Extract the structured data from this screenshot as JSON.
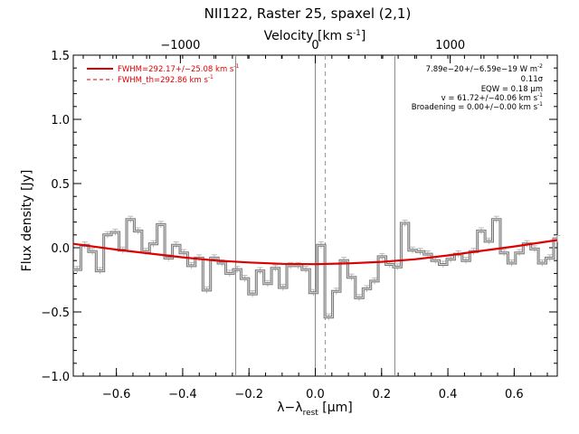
{
  "chart_data": {
    "type": "line",
    "title": "NII122, Raster 25, spaxel (2,1)",
    "xlabel": "λ−λ_rest [μm]",
    "xlabel_main": "λ−λ",
    "xlabel_sub": "rest",
    "xlabel_unit": " [μm]",
    "ylabel": "Flux density [Jy]",
    "top_axis_label": "Velocity [km s⁻¹]",
    "top_axis_label_main": "Velocity [km s",
    "top_axis_label_sup": "-1",
    "top_axis_label_end": "]",
    "xlim": [
      -0.73,
      0.73
    ],
    "ylim": [
      -1.0,
      1.5
    ],
    "x_ticks": [
      -0.6,
      -0.4,
      -0.2,
      0.0,
      0.2,
      0.4,
      0.6
    ],
    "x_tick_labels": [
      "−0.6",
      "−0.4",
      "−0.2",
      "0.0",
      "0.2",
      "0.4",
      "0.6"
    ],
    "y_ticks": [
      -1.0,
      -0.5,
      0.0,
      0.5,
      1.0,
      1.5
    ],
    "y_tick_labels": [
      "−1.0",
      "−0.5",
      "0.0",
      "0.5",
      "1.0",
      "1.5"
    ],
    "top_ticks_kms": [
      -1000,
      0,
      1000
    ],
    "top_tick_labels": [
      "−1000",
      "0",
      "1000"
    ],
    "vertical_lines": [
      {
        "x": -0.24,
        "style": "solid"
      },
      {
        "x": 0.0,
        "style": "solid"
      },
      {
        "x": 0.03,
        "style": "dashed"
      },
      {
        "x": 0.24,
        "style": "solid"
      }
    ],
    "series": [
      {
        "name": "spectrum",
        "style": "step",
        "color": "#777777",
        "x": [
          -0.73,
          -0.707,
          -0.684,
          -0.661,
          -0.638,
          -0.615,
          -0.592,
          -0.569,
          -0.546,
          -0.523,
          -0.5,
          -0.477,
          -0.454,
          -0.431,
          -0.408,
          -0.385,
          -0.362,
          -0.339,
          -0.316,
          -0.293,
          -0.27,
          -0.247,
          -0.224,
          -0.201,
          -0.178,
          -0.155,
          -0.132,
          -0.109,
          -0.086,
          -0.063,
          -0.04,
          -0.017,
          0.006,
          0.029,
          0.052,
          0.075,
          0.098,
          0.121,
          0.144,
          0.167,
          0.19,
          0.213,
          0.236,
          0.259,
          0.282,
          0.305,
          0.328,
          0.351,
          0.374,
          0.397,
          0.42,
          0.443,
          0.466,
          0.489,
          0.512,
          0.535,
          0.558,
          0.581,
          0.604,
          0.627,
          0.65,
          0.673,
          0.696,
          0.719
        ],
        "y": [
          -0.17,
          0.02,
          -0.03,
          -0.18,
          0.1,
          0.12,
          -0.02,
          0.22,
          0.13,
          -0.03,
          0.03,
          0.18,
          -0.08,
          0.02,
          -0.04,
          -0.14,
          -0.08,
          -0.33,
          -0.08,
          -0.12,
          -0.2,
          -0.17,
          -0.24,
          -0.36,
          -0.18,
          -0.28,
          -0.16,
          -0.31,
          -0.14,
          -0.14,
          -0.17,
          -0.35,
          0.02,
          -0.54,
          -0.34,
          -0.1,
          -0.23,
          -0.39,
          -0.32,
          -0.26,
          -0.07,
          -0.13,
          -0.15,
          0.19,
          -0.02,
          -0.03,
          -0.05,
          -0.1,
          -0.13,
          -0.09,
          -0.05,
          -0.1,
          -0.03,
          0.13,
          0.05,
          0.22,
          -0.04,
          -0.12,
          -0.04,
          0.03,
          -0.01,
          -0.12,
          -0.08,
          0.07
        ]
      },
      {
        "name": "FWHM=292.17+/−25.08 km s⁻¹",
        "style": "line",
        "color": "#dd0000",
        "x": [
          -0.73,
          -0.6,
          -0.5,
          -0.4,
          -0.3,
          -0.2,
          -0.1,
          0.0,
          0.1,
          0.2,
          0.3,
          0.4,
          0.5,
          0.6,
          0.73
        ],
        "y": [
          0.03,
          -0.015,
          -0.045,
          -0.075,
          -0.1,
          -0.115,
          -0.125,
          -0.128,
          -0.122,
          -0.11,
          -0.09,
          -0.06,
          -0.025,
          0.01,
          0.06
        ]
      }
    ],
    "legend": {
      "placement": "top-left",
      "entries": [
        {
          "label_main": "FWHM=292.17+/−25.08 km s",
          "label_sup": "-1",
          "color": "#dd0000",
          "style": "solid"
        },
        {
          "label_main": "FWHM_th=292.86 km s",
          "label_sup": "-1",
          "color": "#dd0000",
          "style": "dashed"
        }
      ]
    },
    "annotations": [
      {
        "main": "7.89e−20+/−6.59e−19 W m",
        "sup": "-2"
      },
      {
        "main": "0.11σ",
        "sup": ""
      },
      {
        "main": "EQW = 0.18 μm",
        "sup": ""
      },
      {
        "main": "v = 61.72+/−40.06 km s",
        "sup": "-1"
      },
      {
        "main": "Broadening = 0.00+/−0.00 km s",
        "sup": "-1"
      }
    ]
  }
}
